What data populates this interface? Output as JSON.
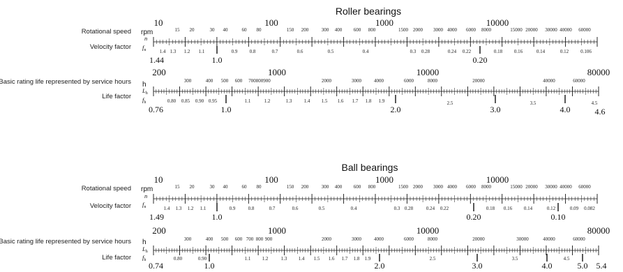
{
  "panels": [
    {
      "title": "Roller bearings",
      "speed_row": {
        "label": "Rotational speed",
        "unit": "rpm",
        "symbol": "n",
        "major_labels": [
          "10",
          "100",
          "1000",
          "10000"
        ],
        "minor_labels": [
          "15",
          "20",
          "30",
          "40",
          "60",
          "80",
          "150",
          "200",
          "300",
          "400",
          "600",
          "800",
          "1500",
          "2000",
          "3000",
          "4000",
          "6000",
          "8000",
          "15000",
          "20000",
          "30000",
          "40000",
          "60000"
        ]
      },
      "velocity_row": {
        "label": "Velocity factor",
        "symbol": "f",
        "symbol_sub": "n",
        "end_label": "1.44",
        "big_labels": [
          "1.0",
          "0.20"
        ],
        "small_labels": [
          "1.4",
          "1.3",
          "1.2",
          "1.1",
          "0.9",
          "0.8",
          "0.7",
          "0.6",
          "0.5",
          "0.4",
          "0.3",
          "0.28",
          "0.24",
          "0.22",
          "0.18",
          "0.16",
          "0.14",
          "0.12",
          "0.106"
        ]
      },
      "life_row": {
        "label": "Basic rating life represented by service hours",
        "unit": "h",
        "symbol": "L",
        "symbol_sub": "h",
        "major_labels": [
          "200",
          "1000",
          "10000",
          "80000"
        ],
        "minor_labels": [
          "300",
          "400",
          "500",
          "600",
          "700800900",
          "2000",
          "3000",
          "4000",
          "6000",
          "8000",
          "20000",
          "40000",
          "60000"
        ]
      },
      "lifefactor_row": {
        "label": "Life factor",
        "symbol": "f",
        "symbol_sub": "h",
        "big_labels": [
          "0.76",
          "1.0",
          "2.0",
          "3.0",
          "4.0",
          "4.6"
        ],
        "small_labels": [
          "0.80",
          "0.85",
          "0.90",
          "0.95",
          "1.1",
          "1.2",
          "1.3",
          "1.4",
          "1.5",
          "1.6",
          "1.7",
          "1.8",
          "1.9",
          "2.5",
          "3.5",
          "4.5"
        ]
      }
    },
    {
      "title": "Ball bearings",
      "speed_row": {
        "label": "Rotational speed",
        "unit": "rpm",
        "symbol": "n",
        "major_labels": [
          "10",
          "100",
          "1000",
          "10000"
        ],
        "minor_labels": [
          "15",
          "20",
          "30",
          "40",
          "60",
          "80",
          "150",
          "200",
          "300",
          "400",
          "600",
          "800",
          "1500",
          "2000",
          "3000",
          "4000",
          "6000",
          "8000",
          "15000",
          "20000",
          "30000",
          "40000",
          "60000"
        ]
      },
      "velocity_row": {
        "label": "Velocity factor",
        "symbol": "f",
        "symbol_sub": "n",
        "end_label": "1.49",
        "big_labels": [
          "1.0",
          "0.20",
          "0.10"
        ],
        "small_labels": [
          "1.4",
          "1.3",
          "1.2",
          "1.1",
          "0.9",
          "0.8",
          "0.7",
          "0.6",
          "0.5",
          "0.4",
          "0.3",
          "0.28",
          "0.24",
          "0.22",
          "0.18",
          "0.16",
          "0.14",
          "0.12",
          "0.09",
          "0.082"
        ]
      },
      "life_row": {
        "label": "Basic rating life represented by service hours",
        "unit": "h",
        "symbol": "L",
        "symbol_sub": "h",
        "major_labels": [
          "200",
          "1000",
          "10000",
          "80000"
        ],
        "minor_labels": [
          "300",
          "400",
          "500",
          "600",
          "700",
          "800",
          "900",
          "2000",
          "3000",
          "4000",
          "6000",
          "8000",
          "20000",
          "30000",
          "40000",
          "60000"
        ]
      },
      "lifefactor_row": {
        "label": "Life factor",
        "symbol": "f",
        "symbol_sub": "h",
        "big_labels": [
          "0.74",
          "1.0",
          "2.0",
          "3.0",
          "4.0",
          "5.0",
          "5.4"
        ],
        "small_labels": [
          "0.80",
          "0.90",
          "1.1",
          "1.2",
          "1.3",
          "1.4",
          "1.5",
          "1.6",
          "1.7",
          "1.8",
          "1.9",
          "2.5",
          "3.5",
          "4.5"
        ]
      }
    }
  ]
}
